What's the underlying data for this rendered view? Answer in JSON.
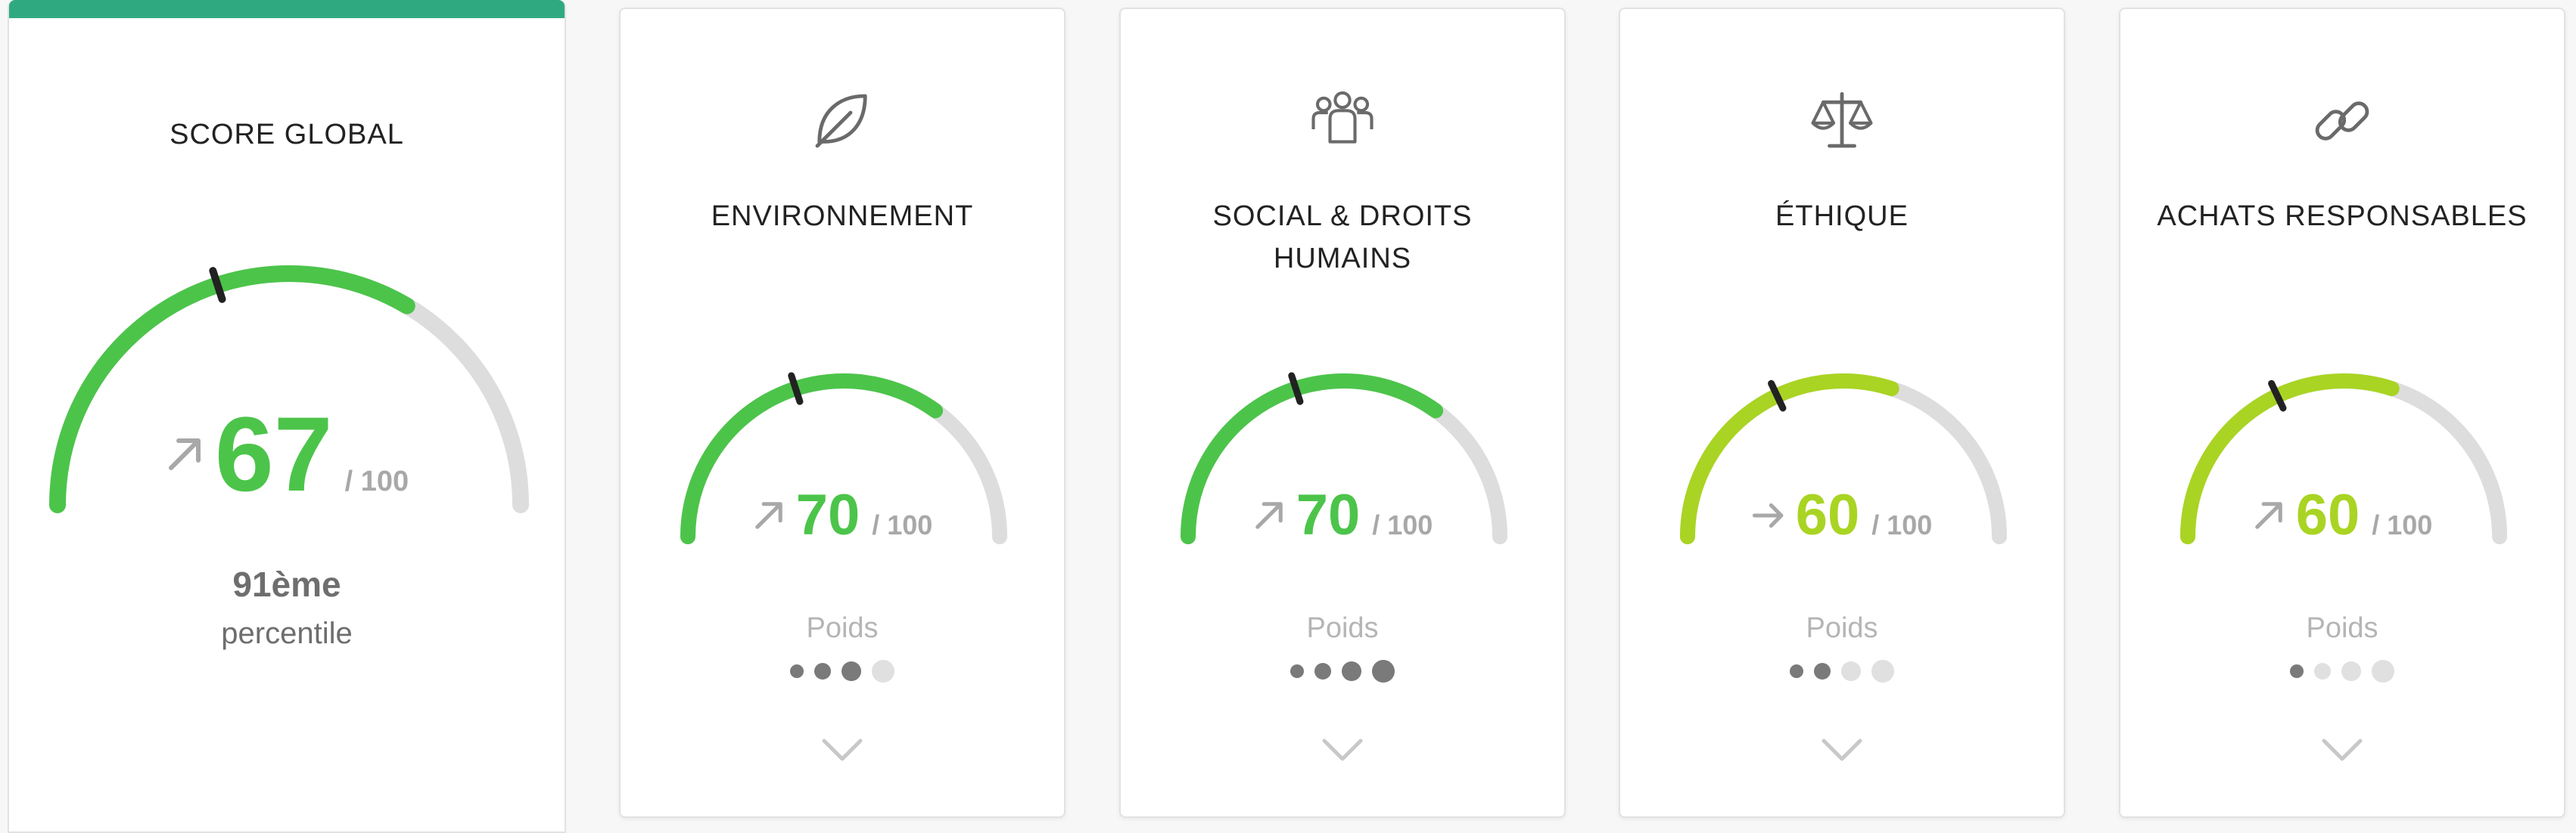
{
  "colors": {
    "topbar": "#2faa80",
    "green": "#4cc44a",
    "lime": "#a9d423",
    "track": "#dddddd",
    "needle": "#222222",
    "grey_text": "#a8a8a8",
    "dot_on": "#7a7a7a",
    "dot_off": "#e0e0e0"
  },
  "global": {
    "title": "SCORE GLOBAL",
    "score": "67",
    "score_fraction": 0.67,
    "max": "/ 100",
    "trend_icon": "arrow-up-right-icon",
    "rank": "91ème",
    "percentile_label": "percentile"
  },
  "categories": [
    {
      "id": "environnement",
      "title_lines": [
        "ENVIRONNEMENT",
        ""
      ],
      "icon": "leaf-icon",
      "score": "70",
      "score_fraction": 0.7,
      "max": "/ 100",
      "trend_icon": "arrow-up-right-icon",
      "color": "green",
      "weight_label": "Poids",
      "weight_level": 3,
      "weight_max": 4
    },
    {
      "id": "social",
      "title_lines": [
        "SOCIAL & DROITS",
        "HUMAINS"
      ],
      "icon": "people-group-icon",
      "score": "70",
      "score_fraction": 0.7,
      "max": "/ 100",
      "trend_icon": "arrow-up-right-icon",
      "color": "green",
      "weight_label": "Poids",
      "weight_level": 4,
      "weight_max": 4
    },
    {
      "id": "ethique",
      "title_lines": [
        "ÉTHIQUE",
        ""
      ],
      "icon": "scales-icon",
      "score": "60",
      "score_fraction": 0.6,
      "max": "/ 100",
      "trend_icon": "arrow-right-icon",
      "color": "lime",
      "weight_label": "Poids",
      "weight_level": 2,
      "weight_max": 4
    },
    {
      "id": "achats",
      "title_lines": [
        "ACHATS RESPONSABLES",
        ""
      ],
      "icon": "chain-link-icon",
      "score": "60",
      "score_fraction": 0.6,
      "max": "/ 100",
      "trend_icon": "arrow-up-right-icon",
      "color": "lime",
      "weight_label": "Poids",
      "weight_level": 1,
      "weight_max": 4
    }
  ]
}
